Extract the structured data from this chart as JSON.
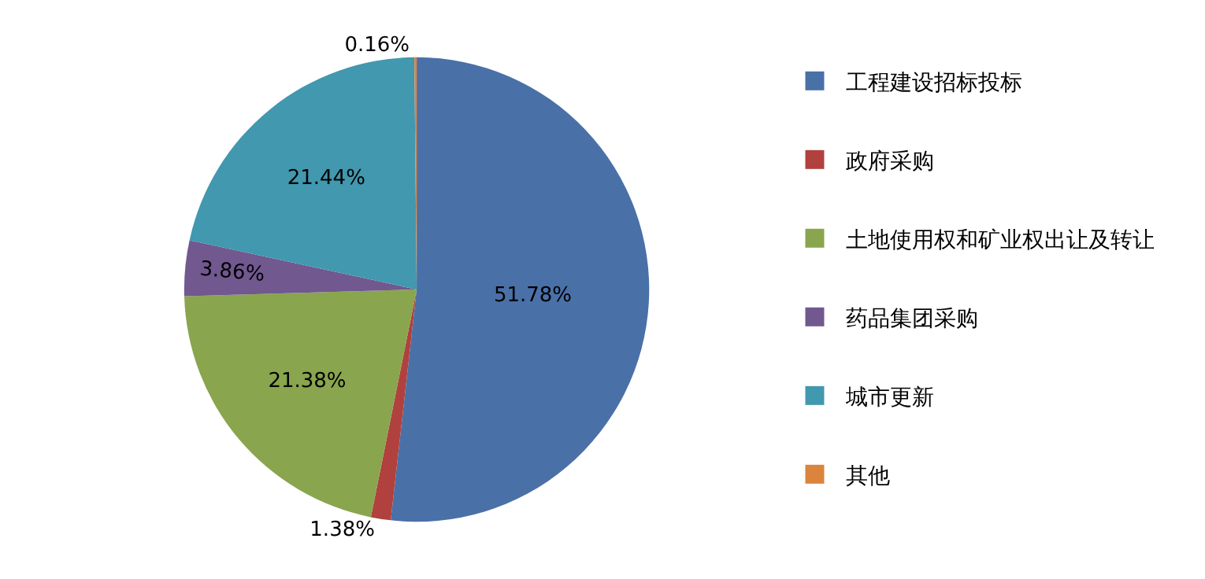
{
  "chart_data": {
    "type": "pie",
    "categories": [
      "工程建设招标投标",
      "政府采购",
      "土地使用权和矿业权出让及转让",
      "药品集团采购",
      "城市更新",
      "其他"
    ],
    "values": [
      51.78,
      1.38,
      21.38,
      3.86,
      21.44,
      0.16
    ],
    "value_labels": [
      "51.78%",
      "1.38%",
      "21.38%",
      "3.86%",
      "21.44%",
      "0.16%"
    ],
    "colors": [
      "#4a70a8",
      "#b0413e",
      "#89a54e",
      "#71588f",
      "#4198af",
      "#db843d"
    ],
    "legend": "right"
  }
}
